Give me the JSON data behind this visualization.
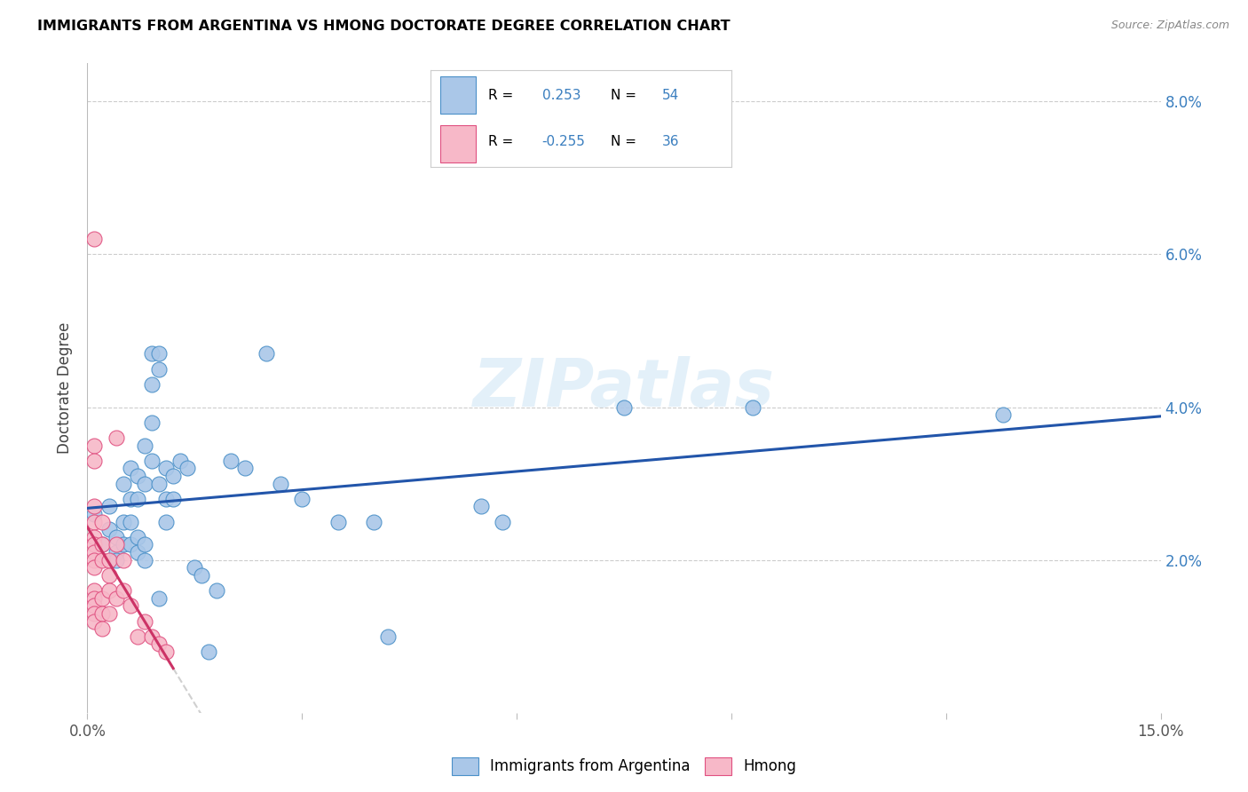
{
  "title": "IMMIGRANTS FROM ARGENTINA VS HMONG DOCTORATE DEGREE CORRELATION CHART",
  "source": "Source: ZipAtlas.com",
  "ylabel": "Doctorate Degree",
  "xlim": [
    0,
    0.15
  ],
  "ylim": [
    0,
    0.085
  ],
  "xtick_positions": [
    0.0,
    0.03,
    0.06,
    0.09,
    0.12,
    0.15
  ],
  "xtick_labels": [
    "0.0%",
    "",
    "",
    "",
    "",
    "15.0%"
  ],
  "ytick_positions": [
    0.0,
    0.02,
    0.04,
    0.06,
    0.08
  ],
  "ytick_labels_right": [
    "",
    "2.0%",
    "4.0%",
    "6.0%",
    "8.0%"
  ],
  "argentina_fill_color": "#aac7e8",
  "argentina_edge_color": "#4a90c8",
  "hmong_fill_color": "#f7b8c8",
  "hmong_edge_color": "#e05080",
  "argentina_line_color": "#2255aa",
  "hmong_line_color": "#cc3366",
  "blue_text_color": "#3a7ebf",
  "grid_color": "#cccccc",
  "argentina_r": "0.253",
  "argentina_n": "54",
  "hmong_r": "-0.255",
  "hmong_n": "36",
  "legend_label_argentina": "Immigrants from Argentina",
  "legend_label_hmong": "Hmong",
  "argentina_points": [
    [
      0.001,
      0.026
    ],
    [
      0.002,
      0.022
    ],
    [
      0.003,
      0.027
    ],
    [
      0.003,
      0.024
    ],
    [
      0.004,
      0.023
    ],
    [
      0.004,
      0.021
    ],
    [
      0.004,
      0.02
    ],
    [
      0.005,
      0.03
    ],
    [
      0.005,
      0.025
    ],
    [
      0.005,
      0.022
    ],
    [
      0.006,
      0.032
    ],
    [
      0.006,
      0.028
    ],
    [
      0.006,
      0.025
    ],
    [
      0.006,
      0.022
    ],
    [
      0.007,
      0.031
    ],
    [
      0.007,
      0.028
    ],
    [
      0.007,
      0.023
    ],
    [
      0.007,
      0.021
    ],
    [
      0.008,
      0.035
    ],
    [
      0.008,
      0.03
    ],
    [
      0.008,
      0.022
    ],
    [
      0.008,
      0.02
    ],
    [
      0.009,
      0.047
    ],
    [
      0.009,
      0.043
    ],
    [
      0.009,
      0.038
    ],
    [
      0.009,
      0.033
    ],
    [
      0.01,
      0.047
    ],
    [
      0.01,
      0.045
    ],
    [
      0.01,
      0.03
    ],
    [
      0.01,
      0.015
    ],
    [
      0.011,
      0.032
    ],
    [
      0.011,
      0.028
    ],
    [
      0.011,
      0.025
    ],
    [
      0.012,
      0.031
    ],
    [
      0.012,
      0.028
    ],
    [
      0.013,
      0.033
    ],
    [
      0.014,
      0.032
    ],
    [
      0.015,
      0.019
    ],
    [
      0.016,
      0.018
    ],
    [
      0.017,
      0.008
    ],
    [
      0.018,
      0.016
    ],
    [
      0.02,
      0.033
    ],
    [
      0.022,
      0.032
    ],
    [
      0.025,
      0.047
    ],
    [
      0.027,
      0.03
    ],
    [
      0.03,
      0.028
    ],
    [
      0.035,
      0.025
    ],
    [
      0.04,
      0.025
    ],
    [
      0.042,
      0.01
    ],
    [
      0.055,
      0.027
    ],
    [
      0.058,
      0.025
    ],
    [
      0.075,
      0.04
    ],
    [
      0.093,
      0.04
    ],
    [
      0.128,
      0.039
    ]
  ],
  "hmong_points": [
    [
      0.001,
      0.062
    ],
    [
      0.001,
      0.035
    ],
    [
      0.001,
      0.033
    ],
    [
      0.001,
      0.027
    ],
    [
      0.001,
      0.025
    ],
    [
      0.001,
      0.023
    ],
    [
      0.001,
      0.022
    ],
    [
      0.001,
      0.021
    ],
    [
      0.001,
      0.02
    ],
    [
      0.001,
      0.019
    ],
    [
      0.001,
      0.016
    ],
    [
      0.001,
      0.015
    ],
    [
      0.001,
      0.014
    ],
    [
      0.001,
      0.013
    ],
    [
      0.001,
      0.012
    ],
    [
      0.002,
      0.025
    ],
    [
      0.002,
      0.022
    ],
    [
      0.002,
      0.02
    ],
    [
      0.002,
      0.015
    ],
    [
      0.002,
      0.013
    ],
    [
      0.002,
      0.011
    ],
    [
      0.003,
      0.02
    ],
    [
      0.003,
      0.018
    ],
    [
      0.003,
      0.016
    ],
    [
      0.003,
      0.013
    ],
    [
      0.004,
      0.036
    ],
    [
      0.004,
      0.022
    ],
    [
      0.004,
      0.015
    ],
    [
      0.005,
      0.02
    ],
    [
      0.005,
      0.016
    ],
    [
      0.006,
      0.014
    ],
    [
      0.007,
      0.01
    ],
    [
      0.008,
      0.012
    ],
    [
      0.009,
      0.01
    ],
    [
      0.01,
      0.009
    ],
    [
      0.011,
      0.008
    ]
  ]
}
